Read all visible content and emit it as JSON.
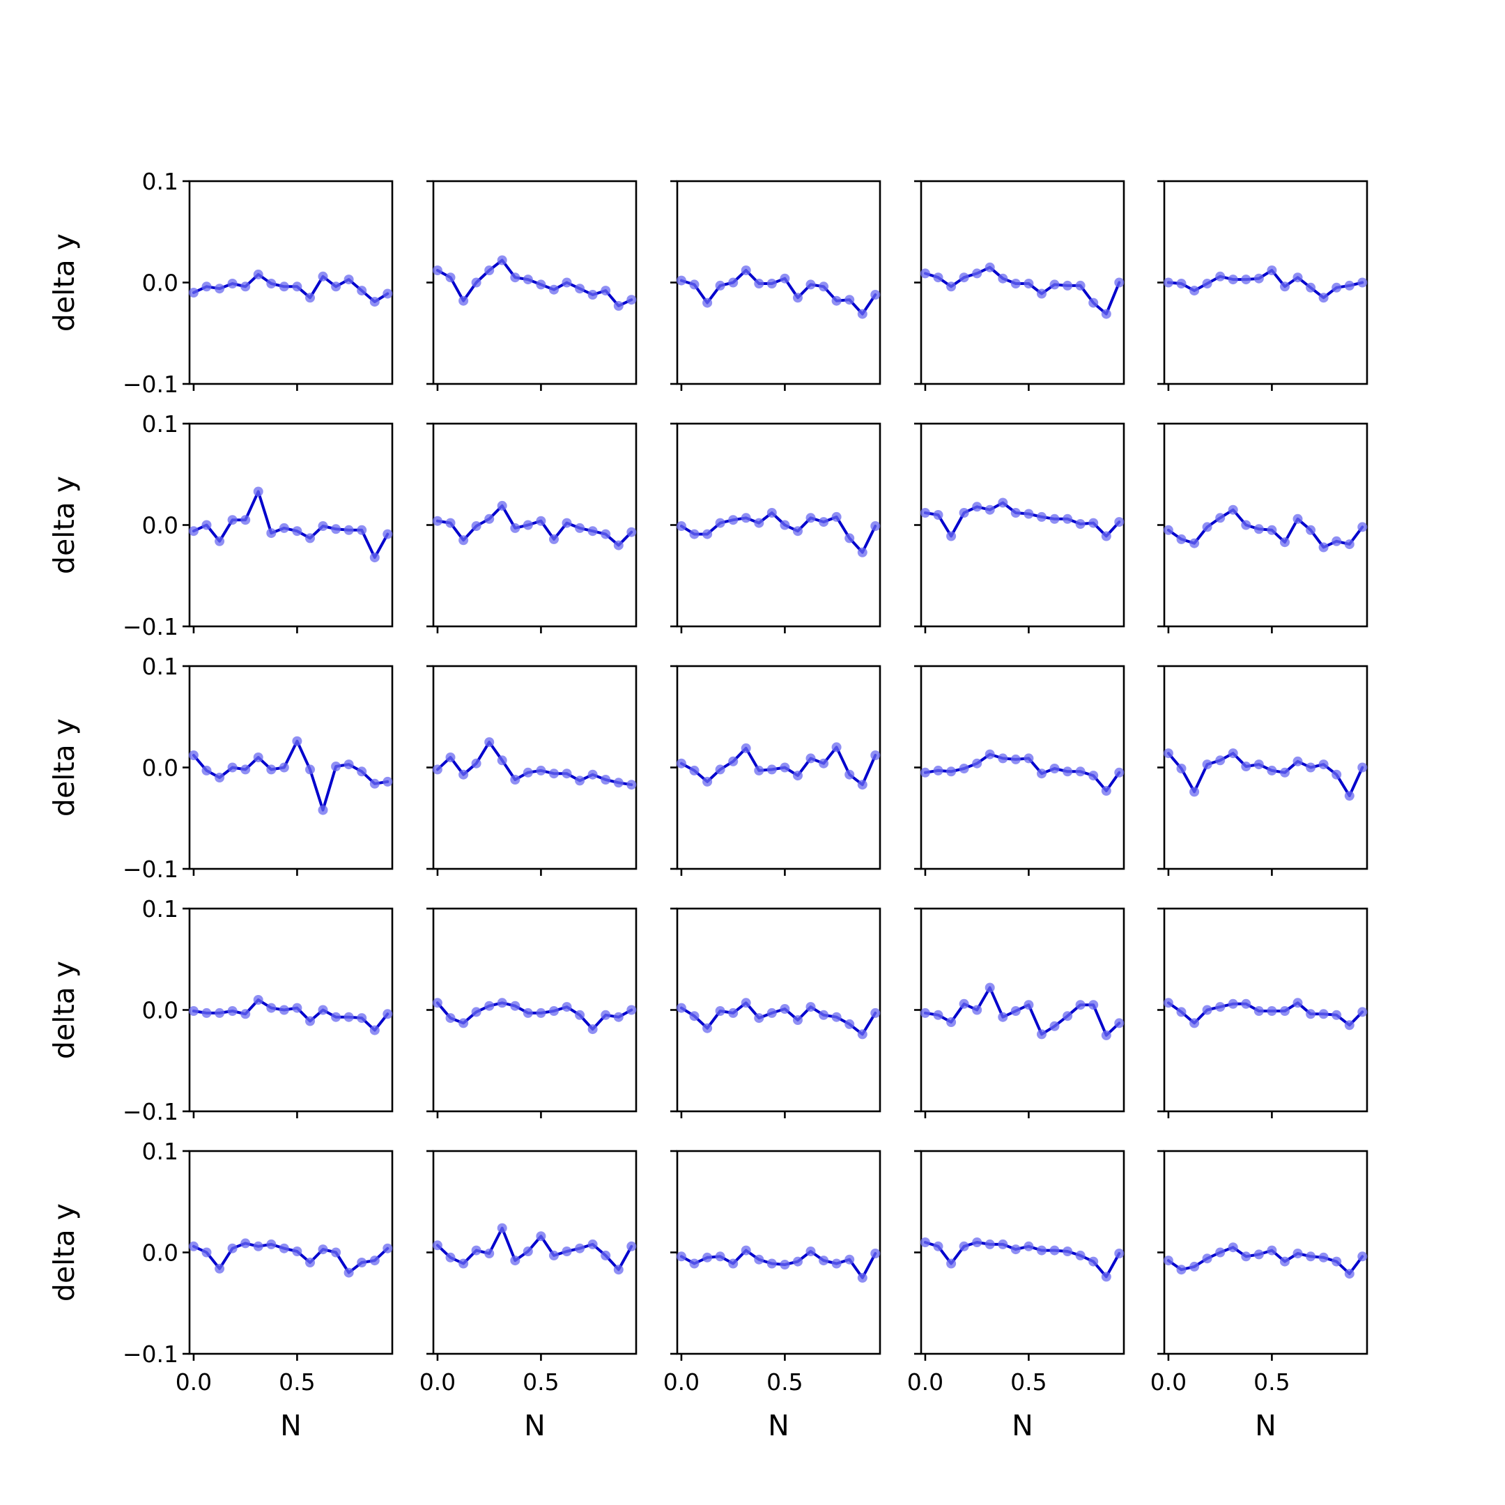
{
  "figure": {
    "background": "#ffffff"
  },
  "style": {
    "line_color": "#0000cc",
    "marker_color": "#6a6af0",
    "axes_color": "#000000"
  },
  "chart_data": {
    "type": "line",
    "layout": "5x5 grid of small multiples with shared axes",
    "xlabel": "N",
    "ylabel": "delta y",
    "xlim": [
      -0.02,
      0.96
    ],
    "ylim": [
      -0.1,
      0.1
    ],
    "xticks": [
      0.0,
      0.5
    ],
    "xtick_labels": [
      "0.0",
      "0.5"
    ],
    "yticks": [
      -0.1,
      0.0,
      0.1
    ],
    "ytick_labels": [
      "−0.1",
      "0.0",
      "0.1"
    ],
    "x": [
      0.0,
      0.0625,
      0.125,
      0.1875,
      0.25,
      0.3125,
      0.375,
      0.4375,
      0.5,
      0.5625,
      0.625,
      0.6875,
      0.75,
      0.8125,
      0.875,
      0.9375
    ],
    "grid": false,
    "legend": "none",
    "panels": [
      [
        [
          -0.01,
          -0.004,
          -0.006,
          -0.001,
          -0.004,
          0.008,
          -0.001,
          -0.004,
          -0.004,
          -0.015,
          0.006,
          -0.004,
          0.003,
          -0.008,
          -0.019,
          -0.011
        ],
        [
          0.012,
          0.005,
          -0.018,
          0.0,
          0.012,
          0.022,
          0.005,
          0.003,
          -0.002,
          -0.007,
          0.0,
          -0.006,
          -0.012,
          -0.008,
          -0.023,
          -0.017
        ],
        [
          0.002,
          -0.002,
          -0.02,
          -0.003,
          0.0,
          0.012,
          -0.001,
          -0.001,
          0.004,
          -0.015,
          -0.002,
          -0.004,
          -0.018,
          -0.017,
          -0.031,
          -0.012
        ],
        [
          0.009,
          0.005,
          -0.004,
          0.005,
          0.009,
          0.015,
          0.004,
          -0.001,
          -0.001,
          -0.011,
          -0.002,
          -0.003,
          -0.003,
          -0.02,
          -0.031,
          0.0
        ],
        [
          0.0,
          -0.001,
          -0.008,
          -0.001,
          0.006,
          0.003,
          0.003,
          0.004,
          0.012,
          -0.004,
          0.005,
          -0.005,
          -0.015,
          -0.005,
          -0.003,
          0.0
        ]
      ],
      [
        [
          -0.006,
          0.0,
          -0.016,
          0.005,
          0.005,
          0.033,
          -0.008,
          -0.003,
          -0.006,
          -0.013,
          -0.001,
          -0.004,
          -0.005,
          -0.005,
          -0.032,
          -0.009
        ],
        [
          0.004,
          0.002,
          -0.015,
          -0.001,
          0.006,
          0.019,
          -0.003,
          0.0,
          0.004,
          -0.014,
          0.002,
          -0.003,
          -0.006,
          -0.009,
          -0.02,
          -0.007
        ],
        [
          -0.001,
          -0.009,
          -0.009,
          0.002,
          0.005,
          0.007,
          0.002,
          0.012,
          0.0,
          -0.006,
          0.007,
          0.003,
          0.008,
          -0.013,
          -0.027,
          -0.001
        ],
        [
          0.012,
          0.01,
          -0.011,
          0.012,
          0.018,
          0.015,
          0.022,
          0.012,
          0.011,
          0.008,
          0.006,
          0.006,
          0.001,
          0.002,
          -0.011,
          0.003
        ],
        [
          -0.005,
          -0.014,
          -0.018,
          -0.002,
          0.007,
          0.015,
          0.0,
          -0.004,
          -0.005,
          -0.017,
          0.006,
          -0.005,
          -0.022,
          -0.016,
          -0.019,
          -0.002
        ]
      ],
      [
        [
          0.012,
          -0.003,
          -0.01,
          0.0,
          -0.002,
          0.01,
          -0.002,
          0.0,
          0.026,
          -0.002,
          -0.042,
          0.001,
          0.003,
          -0.004,
          -0.016,
          -0.014
        ],
        [
          -0.002,
          0.01,
          -0.007,
          0.004,
          0.025,
          0.007,
          -0.012,
          -0.005,
          -0.003,
          -0.006,
          -0.006,
          -0.013,
          -0.007,
          -0.012,
          -0.015,
          -0.017
        ],
        [
          0.004,
          -0.003,
          -0.014,
          -0.002,
          0.006,
          0.019,
          -0.003,
          -0.002,
          0.0,
          -0.008,
          0.009,
          0.004,
          0.02,
          -0.007,
          -0.017,
          0.012
        ],
        [
          -0.005,
          -0.003,
          -0.004,
          -0.001,
          0.004,
          0.013,
          0.009,
          0.008,
          0.009,
          -0.006,
          -0.001,
          -0.004,
          -0.004,
          -0.008,
          -0.023,
          -0.005
        ],
        [
          0.014,
          -0.001,
          -0.024,
          0.003,
          0.007,
          0.014,
          0.001,
          0.003,
          -0.003,
          -0.005,
          0.006,
          0.0,
          0.003,
          -0.007,
          -0.028,
          0.0
        ]
      ],
      [
        [
          -0.001,
          -0.003,
          -0.003,
          -0.001,
          -0.004,
          0.01,
          0.002,
          0.0,
          0.002,
          -0.011,
          0.0,
          -0.007,
          -0.007,
          -0.008,
          -0.02,
          -0.004
        ],
        [
          0.007,
          -0.008,
          -0.013,
          -0.002,
          0.004,
          0.007,
          0.004,
          -0.003,
          -0.003,
          -0.001,
          0.003,
          -0.005,
          -0.019,
          -0.005,
          -0.007,
          0.0
        ],
        [
          0.002,
          -0.006,
          -0.018,
          -0.001,
          -0.003,
          0.007,
          -0.008,
          -0.003,
          0.001,
          -0.01,
          0.003,
          -0.005,
          -0.007,
          -0.014,
          -0.024,
          -0.003
        ],
        [
          -0.003,
          -0.005,
          -0.012,
          0.006,
          0.0,
          0.022,
          -0.007,
          -0.001,
          0.005,
          -0.024,
          -0.016,
          -0.006,
          0.005,
          0.005,
          -0.025,
          -0.013
        ],
        [
          0.007,
          -0.002,
          -0.013,
          0.0,
          0.003,
          0.006,
          0.006,
          -0.001,
          -0.001,
          -0.001,
          0.007,
          -0.004,
          -0.004,
          -0.005,
          -0.015,
          -0.002
        ]
      ],
      [
        [
          0.006,
          0.0,
          -0.016,
          0.004,
          0.009,
          0.006,
          0.008,
          0.004,
          0.001,
          -0.01,
          0.003,
          0.0,
          -0.02,
          -0.01,
          -0.008,
          0.004
        ],
        [
          0.007,
          -0.005,
          -0.011,
          0.002,
          -0.001,
          0.024,
          -0.008,
          0.001,
          0.016,
          -0.003,
          0.001,
          0.004,
          0.008,
          -0.003,
          -0.017,
          0.006
        ],
        [
          -0.004,
          -0.011,
          -0.005,
          -0.004,
          -0.011,
          0.002,
          -0.007,
          -0.011,
          -0.012,
          -0.009,
          0.001,
          -0.008,
          -0.011,
          -0.007,
          -0.025,
          -0.001
        ],
        [
          0.01,
          0.006,
          -0.011,
          0.006,
          0.01,
          0.008,
          0.008,
          0.003,
          0.006,
          0.002,
          0.002,
          0.001,
          -0.003,
          -0.009,
          -0.024,
          -0.001
        ],
        [
          -0.008,
          -0.017,
          -0.014,
          -0.006,
          0.0,
          0.005,
          -0.004,
          -0.002,
          0.002,
          -0.009,
          -0.001,
          -0.004,
          -0.005,
          -0.009,
          -0.021,
          -0.004
        ]
      ]
    ]
  }
}
